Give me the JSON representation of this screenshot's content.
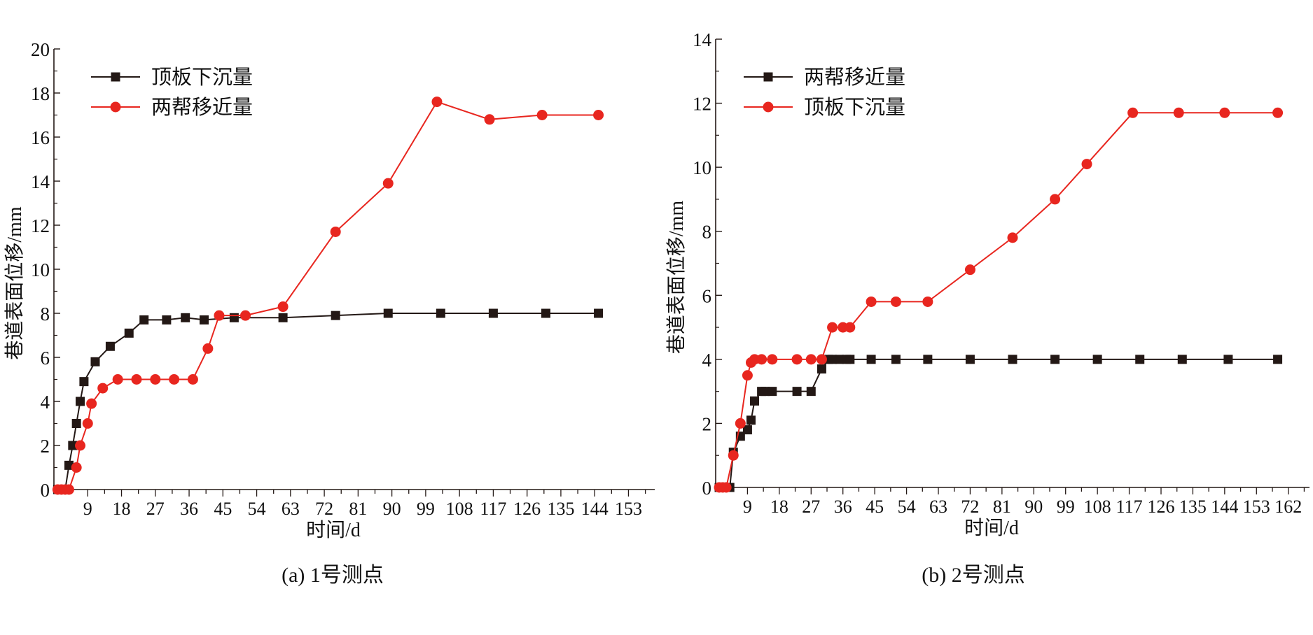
{
  "colors": {
    "black_series": "#231815",
    "red_series": "#e8261f",
    "axis": "#231815"
  },
  "chart_data": [
    {
      "type": "line",
      "caption": "(a) 1号测点",
      "xlabel": "时间/d",
      "ylabel": "巷道表面位移/mm",
      "xlim": [
        0,
        160
      ],
      "ylim": [
        0,
        20
      ],
      "xticks": [
        9,
        18,
        27,
        36,
        45,
        54,
        63,
        72,
        81,
        90,
        99,
        108,
        117,
        126,
        135,
        144,
        153
      ],
      "yticks": [
        0,
        2,
        4,
        6,
        8,
        10,
        12,
        14,
        16,
        18,
        20
      ],
      "legend_position": "top-left",
      "grid": false,
      "series": [
        {
          "name": "顶板下沉量",
          "color": "#231815",
          "marker": "square",
          "x": [
            1,
            2,
            3,
            4,
            5,
            6,
            7,
            8,
            11,
            15,
            20,
            24,
            30,
            35,
            40,
            48,
            61,
            75,
            89,
            103,
            117,
            131,
            145
          ],
          "y": [
            0,
            0,
            0,
            1.1,
            2.0,
            3.0,
            4.0,
            4.9,
            5.8,
            6.5,
            7.1,
            7.7,
            7.7,
            7.8,
            7.7,
            7.8,
            7.8,
            7.9,
            8.0,
            8.0,
            8.0,
            8.0,
            8.0
          ]
        },
        {
          "name": "两帮移近量",
          "color": "#e8261f",
          "marker": "circle",
          "x": [
            1,
            2,
            3,
            4,
            6,
            7,
            9,
            10,
            13,
            17,
            22,
            27,
            32,
            37,
            41,
            44,
            51,
            61,
            75,
            89,
            102,
            116,
            130,
            145
          ],
          "y": [
            0,
            0,
            0,
            0,
            1.0,
            2.0,
            3.0,
            3.9,
            4.6,
            5.0,
            5.0,
            5.0,
            5.0,
            5.0,
            6.4,
            7.9,
            7.9,
            8.3,
            11.7,
            13.9,
            17.6,
            16.8,
            17.0,
            17.0
          ]
        }
      ]
    },
    {
      "type": "line",
      "caption": "(b) 2号测点",
      "xlabel": "时间/d",
      "ylabel": "巷道表面位移/mm",
      "xlim": [
        0,
        168
      ],
      "ylim": [
        0,
        14
      ],
      "xticks": [
        9,
        18,
        27,
        36,
        45,
        54,
        63,
        72,
        81,
        90,
        99,
        108,
        117,
        126,
        135,
        144,
        153,
        162
      ],
      "yticks": [
        0,
        2,
        4,
        6,
        8,
        10,
        12,
        14
      ],
      "legend_position": "top-left",
      "grid": false,
      "series": [
        {
          "name": "两帮移近量",
          "color": "#231815",
          "marker": "square",
          "x": [
            1,
            2,
            3,
            4,
            5,
            7,
            9,
            10,
            11,
            13,
            14,
            16,
            23,
            27,
            30,
            32,
            33,
            35,
            37,
            38,
            44,
            51,
            60,
            72,
            84,
            96,
            108,
            120,
            132,
            145,
            159
          ],
          "y": [
            0,
            0,
            0,
            0,
            1.1,
            1.6,
            1.8,
            2.1,
            2.7,
            3.0,
            3.0,
            3.0,
            3.0,
            3.0,
            3.7,
            4.0,
            4.0,
            4.0,
            4.0,
            4.0,
            4.0,
            4.0,
            4.0,
            4.0,
            4.0,
            4.0,
            4.0,
            4.0,
            4.0,
            4.0,
            4.0
          ]
        },
        {
          "name": "顶板下沉量",
          "color": "#e8261f",
          "marker": "circle",
          "x": [
            1,
            2,
            3,
            5,
            7,
            9,
            10,
            11,
            13,
            16,
            23,
            27,
            30,
            33,
            36,
            38,
            44,
            51,
            60,
            72,
            84,
            96,
            105,
            118,
            131,
            144,
            159
          ],
          "y": [
            0,
            0,
            0,
            1.0,
            2.0,
            3.5,
            3.9,
            4.0,
            4.0,
            4.0,
            4.0,
            4.0,
            4.0,
            5.0,
            5.0,
            5.0,
            5.8,
            5.8,
            5.8,
            6.8,
            7.8,
            9.0,
            10.1,
            11.7,
            11.7,
            11.7,
            11.7
          ]
        }
      ]
    }
  ]
}
